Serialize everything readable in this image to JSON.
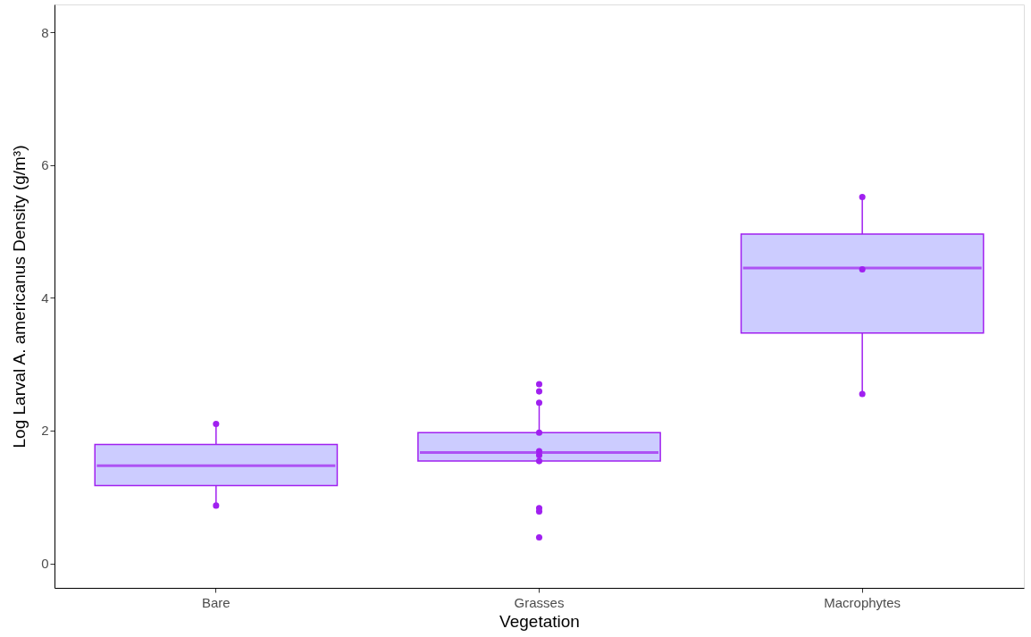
{
  "chart_data": {
    "type": "box",
    "xlabel": "Vegetation",
    "ylabel": "Log Larval A. americanus Density (g/m³)",
    "categories": [
      "Bare",
      "Grasses",
      "Macrophytes"
    ],
    "boxes": [
      {
        "low": 0.87,
        "q1": 1.17,
        "median": 1.47,
        "q3": 1.79,
        "high": 2.1
      },
      {
        "low": 1.54,
        "q1": 1.54,
        "median": 1.67,
        "q3": 1.97,
        "high": 2.42
      },
      {
        "low": 2.55,
        "q1": 3.47,
        "median": 4.45,
        "q3": 4.96,
        "high": 5.52
      }
    ],
    "color": "#a020f0",
    "series": [
      {
        "type": "scatter",
        "color": "#a020f0",
        "x": [
          "Bare",
          "Bare",
          "Grasses",
          "Grasses",
          "Grasses",
          "Grasses",
          "Grasses",
          "Grasses",
          "Grasses",
          "Grasses",
          "Grasses",
          "Grasses",
          "Macrophytes",
          "Macrophytes",
          "Macrophytes"
        ],
        "values": [
          2.1,
          0.87,
          2.7,
          2.59,
          2.42,
          1.97,
          1.69,
          1.63,
          1.54,
          0.83,
          0.78,
          0.39,
          5.52,
          4.43,
          2.55
        ]
      }
    ],
    "ylim": [
      -0.37,
      8.42
    ],
    "yticks": [
      0,
      2,
      4,
      6,
      8
    ],
    "grid": false,
    "marker": "circle"
  }
}
